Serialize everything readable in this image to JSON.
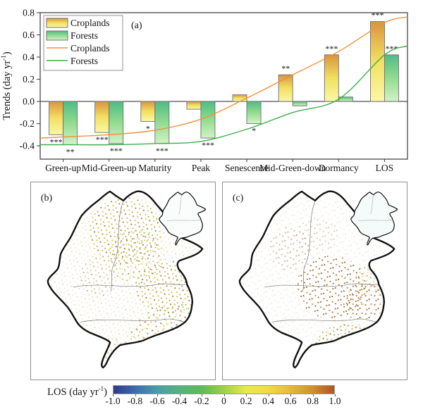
{
  "chart_data": [
    {
      "type": "bar+line",
      "panel_label": "(a)",
      "ylabel_prefix": "Trends (day yr",
      "ylabel_sup": "-1",
      "ylabel_suffix": ")",
      "categories": [
        "Green-up",
        "Mid-Green-up",
        "Maturity",
        "Peak",
        "Senescence",
        "Mid-Green-down",
        "Dormancy",
        "LOS"
      ],
      "yticks": [
        "0.8",
        "0.6",
        "0.4",
        "0.2",
        "0.0",
        "-0.2",
        "-0.4"
      ],
      "ylim": [
        -0.52,
        0.8
      ],
      "grid": false,
      "legend_position": "top-left",
      "series": [
        {
          "name": "Croplands",
          "type": "bar",
          "values": [
            -0.3,
            -0.28,
            -0.18,
            -0.07,
            0.06,
            0.24,
            0.42,
            0.72
          ],
          "significance": [
            "***",
            "***",
            "*",
            "",
            "",
            "**",
            "***",
            "***"
          ]
        },
        {
          "name": "Forests",
          "type": "bar",
          "values": [
            -0.39,
            -0.38,
            -0.38,
            -0.33,
            -0.2,
            -0.04,
            0.04,
            0.42
          ],
          "significance": [
            "**",
            "***",
            "***",
            "***",
            "*",
            "",
            "",
            "***"
          ]
        },
        {
          "name": "Croplands",
          "type": "line",
          "values": [
            -0.32,
            -0.3,
            -0.26,
            -0.16,
            0.03,
            0.24,
            0.45,
            0.71
          ]
        },
        {
          "name": "Forests",
          "type": "line",
          "values": [
            -0.39,
            -0.39,
            -0.38,
            -0.36,
            -0.25,
            -0.1,
            0.02,
            0.42
          ]
        }
      ]
    }
  ],
  "maps": {
    "b": {
      "label": "(b)",
      "palette": [
        "#d2bf4a",
        "#bfa53e",
        "#97803a",
        "#62b33c",
        "#a8692b",
        "#c4ad41"
      ]
    },
    "c": {
      "label": "(c)",
      "palette": [
        "#a8692b",
        "#8a5a22",
        "#b5803a",
        "#62b33c",
        "#d2bf4a",
        "#c4ad41"
      ]
    },
    "inset_palette": [
      "#a9ded4",
      "#85d0c1"
    ]
  },
  "colorbar": {
    "label_prefix": "LOS (day yr",
    "label_sup": "-1",
    "label_suffix": ")",
    "ticks": [
      "-1.0",
      "-0.8",
      "-0.6",
      "-0.4",
      "-0.2",
      "0",
      "0.2",
      "0.4",
      "0.6",
      "0.8",
      "1.0"
    ],
    "gradient": [
      "#2b3a8f",
      "#3a6db0",
      "#47a0a8",
      "#52b47e",
      "#5cbc53",
      "#9ed04b",
      "#e9e94f",
      "#f2da49",
      "#e9b73f",
      "#d3902f",
      "#b3541e"
    ]
  },
  "colors": {
    "croplands_gradient": [
      "#d8953f",
      "#f2e062",
      "#fbf8a6"
    ],
    "forests_gradient": [
      "#4ebc85",
      "#93db8f",
      "#d2f3c9"
    ],
    "croplands_line": "#f0923b",
    "forests_line": "#3fae49",
    "axis": "#3a3a3a"
  }
}
